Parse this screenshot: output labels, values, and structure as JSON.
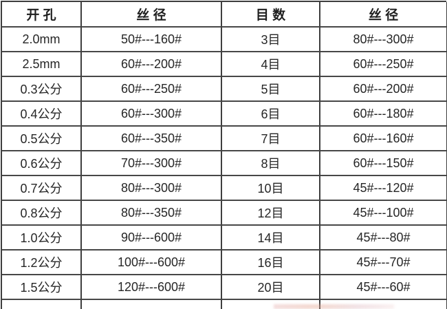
{
  "colors": {
    "border": "#3e3e3e",
    "text": "#262626",
    "background": "#ffffff",
    "watermark_tint": "#e0a0a0"
  },
  "chart_data": {
    "type": "table",
    "title": "",
    "columns": [
      "开 孔",
      "丝 径",
      "目 数",
      "丝 径"
    ],
    "rows": [
      [
        "2.0mm",
        "50#---160#",
        "3目",
        "80#---300#"
      ],
      [
        "2.5mm",
        "60#---200#",
        "4目",
        "60#---250#"
      ],
      [
        "0.3公分",
        "60#---250#",
        "5目",
        "60#---200#"
      ],
      [
        "0.4公分",
        "60#---300#",
        "6目",
        "60#---180#"
      ],
      [
        "0.5公分",
        "60#---350#",
        "7目",
        "60#---160#"
      ],
      [
        "0.6公分",
        "70#---300#",
        "8目",
        "60#---150#"
      ],
      [
        "0.7公分",
        "80#---300#",
        "10目",
        "45#---120#"
      ],
      [
        "0.8公分",
        "80#---350#",
        "12目",
        "45#---100#"
      ],
      [
        "1.0公分",
        "90#---600#",
        "14目",
        "45#---80#"
      ],
      [
        "1.2公分",
        "100#---600#",
        "16目",
        "45#---70#"
      ],
      [
        "1.5公分",
        "120#---600#",
        "20目",
        "45#---60#"
      ]
    ]
  }
}
